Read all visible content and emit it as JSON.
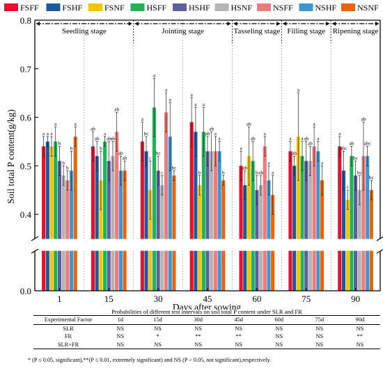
{
  "chart_data": {
    "type": "bar",
    "ylabel": "Soil total P content(g/kg)",
    "xlabel": "Days after sowing",
    "ylim": [
      0.0,
      0.8
    ],
    "y_ticks": [
      0.0,
      0.4,
      0.5,
      0.6,
      0.7,
      0.8
    ],
    "y_tick_labels": [
      "0.0",
      "0.4",
      "0.5",
      "0.6",
      "0.7",
      "0.8"
    ],
    "axis_break": [
      0.0,
      0.35
    ],
    "categories": [
      "1",
      "15",
      "30",
      "45",
      "60",
      "75",
      "90"
    ],
    "stages": [
      {
        "label": "Seedling stage",
        "from": 0,
        "to": 1
      },
      {
        "label": "Jointing stage",
        "from": 2,
        "to": 3
      },
      {
        "label": "Tasseling stage",
        "from": 4,
        "to": 4
      },
      {
        "label": "Filling stage",
        "from": 5,
        "to": 5
      },
      {
        "label": "Ripening stage",
        "from": 6,
        "to": 6
      }
    ],
    "legend_position": "top",
    "series": [
      {
        "name": "FSFF",
        "color": "#e8112d",
        "values": [
          0.54,
          0.54,
          0.55,
          0.59,
          0.5,
          0.53,
          0.54
        ],
        "errors": [
          0.02,
          0.03,
          0.04,
          0.05,
          0.03,
          0.02,
          0.02
        ],
        "letters": [
          "a",
          "ab",
          "a",
          "a",
          "a",
          "a",
          "a"
        ]
      },
      {
        "name": "FSHF",
        "color": "#1f5aa0",
        "values": [
          0.55,
          0.52,
          0.53,
          0.57,
          0.46,
          0.5,
          0.49
        ],
        "errors": [
          0.01,
          0.03,
          0.03,
          0.05,
          0.03,
          0.02,
          0.04
        ],
        "letters": [
          "a",
          "ab",
          "bc",
          "a",
          "ab",
          "ab",
          "abc"
        ]
      },
      {
        "name": "FSNF",
        "color": "#f5c400",
        "values": [
          0.54,
          0.47,
          0.45,
          0.46,
          0.52,
          0.56,
          0.43
        ],
        "errors": [
          0.02,
          0.06,
          0.06,
          0.02,
          0.06,
          0.09,
          0.02
        ],
        "letters": [
          "a",
          "b",
          "c",
          "b",
          "ab",
          "a",
          "c"
        ]
      },
      {
        "name": "HSFF",
        "color": "#1bb556",
        "values": [
          0.55,
          0.55,
          0.62,
          0.57,
          0.51,
          0.52,
          0.52
        ],
        "errors": [
          0.03,
          0.01,
          0.06,
          0.05,
          0.04,
          0.03,
          0.02
        ],
        "letters": [
          "a",
          "a",
          "a",
          "a",
          "ab",
          "a",
          "ab"
        ]
      },
      {
        "name": "HSHF",
        "color": "#5e5e9e",
        "values": [
          0.51,
          0.51,
          0.49,
          0.53,
          0.45,
          0.51,
          0.48
        ],
        "errors": [
          0.03,
          0.04,
          0.03,
          0.03,
          0.03,
          0.04,
          0.03
        ],
        "letters": [
          "b",
          "ab",
          "bc",
          "ab",
          "b",
          "ab",
          "bc"
        ]
      },
      {
        "name": "HSNF",
        "color": "#b4b4b4",
        "values": [
          0.48,
          0.52,
          0.46,
          0.53,
          0.46,
          0.51,
          0.45
        ],
        "errors": [
          0.02,
          0.03,
          0.02,
          0.04,
          0.02,
          0.03,
          0.03
        ],
        "letters": [
          "b",
          "ab",
          "c",
          "ab",
          "ab",
          "ab",
          "bc"
        ]
      },
      {
        "name": "NSFF",
        "color": "#f07a7a",
        "values": [
          0.47,
          0.57,
          0.61,
          0.53,
          0.54,
          0.54,
          0.52
        ],
        "errors": [
          0.02,
          0.04,
          0.04,
          0.03,
          0.02,
          0.04,
          0.07
        ],
        "letters": [
          "b",
          "ab",
          "a",
          "a",
          "a",
          "a",
          "ab"
        ]
      },
      {
        "name": "NSHF",
        "color": "#3a97d4",
        "values": [
          0.49,
          0.49,
          0.56,
          0.53,
          0.47,
          0.53,
          0.52
        ],
        "errors": [
          0.04,
          0.03,
          0.07,
          0.02,
          0.03,
          0.02,
          0.02
        ],
        "letters": [
          "b",
          "ab",
          "a",
          "a",
          "a",
          "a",
          "abc"
        ]
      },
      {
        "name": "NSNF",
        "color": "#e8650a",
        "values": [
          0.56,
          0.49,
          0.48,
          0.47,
          0.44,
          0.47,
          0.45
        ],
        "errors": [
          0.02,
          0.02,
          0.01,
          0.01,
          0.04,
          0.03,
          0.02
        ],
        "letters": [
          "a",
          "ab",
          "bc",
          "b",
          "a",
          "a",
          "bc"
        ]
      }
    ]
  },
  "stats_table": {
    "caption": "Probabilities of different test intervals on soil total P content under SLR and FR",
    "header": [
      "Experimental Factor",
      "1d",
      "15d",
      "30d",
      "45d",
      "60d",
      "75d",
      "90d"
    ],
    "rows": [
      [
        "SLR",
        "NS",
        "NS",
        "NS",
        "NS",
        "NS",
        "NS",
        "NS"
      ],
      [
        "FR",
        "NS",
        "*",
        "**",
        "**",
        "NS",
        "NS",
        "**"
      ],
      [
        "SLR×FR",
        "NS",
        "NS",
        "NS",
        "NS",
        "NS",
        "NS",
        "NS"
      ]
    ],
    "footnote": "* (P ≤ 0.05, significant),**(P ≤ 0.01, extremely significant) and NS (P > 0.05, not significant),respectively."
  }
}
